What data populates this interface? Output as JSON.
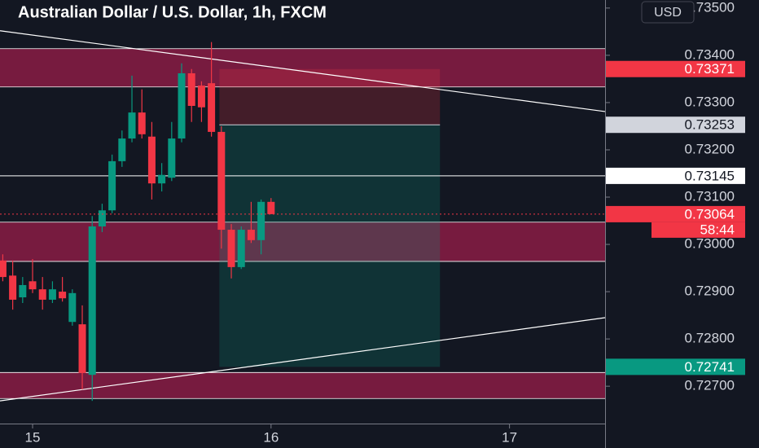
{
  "chart_data": {
    "type": "candlestick",
    "title": "Australian Dollar / U.S. Dollar, 1h, FXCM",
    "currency": "USD",
    "countdown": "58:44",
    "up_color": "#089981",
    "down_color": "#f23645",
    "x": [
      -3,
      -2,
      -1,
      0,
      1,
      2,
      3,
      4,
      5,
      6,
      7,
      8,
      9,
      10,
      11,
      12,
      13,
      14,
      15,
      16,
      17,
      18,
      19,
      20,
      21,
      22,
      23,
      24
    ],
    "open": [
      0.72966,
      0.72934,
      0.72888,
      0.72922,
      0.72905,
      0.72883,
      0.729,
      0.72836,
      0.72831,
      0.72724,
      0.73038,
      0.73072,
      0.73176,
      0.73224,
      0.73279,
      0.73228,
      0.73129,
      0.73141,
      0.73224,
      0.73362,
      0.73336,
      0.73341,
      0.73238,
      0.73031,
      0.72952,
      0.73031,
      0.73009,
      0.7309
    ],
    "high": [
      0.72979,
      0.72966,
      0.72931,
      0.72969,
      0.72931,
      0.72922,
      0.72931,
      0.72905,
      0.72871,
      0.7306,
      0.73086,
      0.7319,
      0.73241,
      0.73357,
      0.73328,
      0.73259,
      0.73172,
      0.73259,
      0.73383,
      0.73371,
      0.73345,
      0.73428,
      0.7325,
      0.73043,
      0.73038,
      0.7309,
      0.73095,
      0.73098
    ],
    "low": [
      0.72922,
      0.72862,
      0.72876,
      0.72897,
      0.72862,
      0.72876,
      0.72879,
      0.72828,
      0.72693,
      0.72669,
      0.73026,
      0.73066,
      0.73164,
      0.73216,
      0.73224,
      0.73095,
      0.73112,
      0.73134,
      0.73216,
      0.73259,
      0.73259,
      0.73228,
      0.72991,
      0.72928,
      0.72948,
      0.73003,
      0.72979,
      0.73064
    ],
    "close": [
      0.72931,
      0.72883,
      0.72914,
      0.72905,
      0.72883,
      0.72905,
      0.72886,
      0.72897,
      0.72728,
      0.73038,
      0.73072,
      0.73176,
      0.73224,
      0.73279,
      0.73233,
      0.73129,
      0.73147,
      0.73224,
      0.73362,
      0.73293,
      0.7329,
      0.73238,
      0.73031,
      0.72952,
      0.73031,
      0.73009,
      0.7309,
      0.73064
    ],
    "xlim": [
      -3.28,
      57.62
    ],
    "xticks": [
      {
        "value": 0,
        "label": "15"
      },
      {
        "value": 24,
        "label": "16"
      },
      {
        "value": 48,
        "label": "17"
      }
    ],
    "ylim": [
      0.72621,
      0.73517
    ],
    "yticks": [
      {
        "value": 0.727,
        "label": "0.72700"
      },
      {
        "value": 0.728,
        "label": "0.72800"
      },
      {
        "value": 0.729,
        "label": "0.72900"
      },
      {
        "value": 0.73,
        "label": "0.73000"
      },
      {
        "value": 0.731,
        "label": "0.73100"
      },
      {
        "value": 0.732,
        "label": "0.73200"
      },
      {
        "value": 0.733,
        "label": "0.73300"
      },
      {
        "value": 0.734,
        "label": "0.73400"
      },
      {
        "value": 0.735,
        "label": "0.73500"
      }
    ],
    "zones": [
      {
        "from": 0.73414,
        "to": 0.73333
      },
      {
        "from": 0.73047,
        "to": 0.72964
      },
      {
        "from": 0.72729,
        "to": 0.72674
      }
    ],
    "zone_color": "#8a1c44",
    "hlines": [
      {
        "value": 0.73145,
        "color": "#ffffff"
      }
    ],
    "trendlines": [
      {
        "start": 0.73452,
        "end": 0.73281
      },
      {
        "start": 0.72669,
        "end": 0.72845
      }
    ],
    "position": {
      "entry": 0.73253,
      "stop": 0.73371,
      "target": 0.72741,
      "start": 18.8,
      "end": 41
    }
  }
}
